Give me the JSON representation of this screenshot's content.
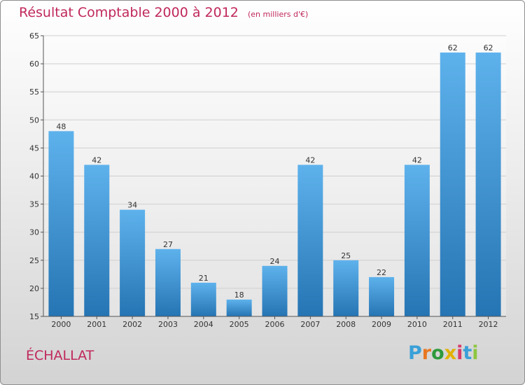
{
  "header": {
    "title": "Résultat Comptable 2000 à 2012",
    "unit": "(en milliers d'€)"
  },
  "commune": "ÉCHALLAT",
  "logo": {
    "letters": [
      "P",
      "r",
      "o",
      "x",
      "i",
      "t",
      "i"
    ],
    "colors": [
      "#3aa0d8",
      "#e87722",
      "#2e9a3c",
      "#e2b100",
      "#d83a6a",
      "#3aa0d8",
      "#8dc63f"
    ]
  },
  "colors": {
    "bar_top": "#5eb2ec",
    "bar_bottom": "#2574b3",
    "grid": "#cfcfcf",
    "title": "#c0285a"
  },
  "chart_data": {
    "type": "bar",
    "categories": [
      "2000",
      "2001",
      "2002",
      "2003",
      "2004",
      "2005",
      "2006",
      "2007",
      "2008",
      "2009",
      "2010",
      "2011",
      "2012"
    ],
    "values": [
      48,
      42,
      34,
      27,
      21,
      18,
      24,
      42,
      25,
      22,
      42,
      62,
      62
    ],
    "title": "Résultat Comptable 2000 à 2012",
    "ylim": [
      15,
      65
    ],
    "yticks": [
      15,
      20,
      25,
      30,
      35,
      40,
      45,
      50,
      55,
      60,
      65
    ],
    "grid": true,
    "data_labels": true
  }
}
